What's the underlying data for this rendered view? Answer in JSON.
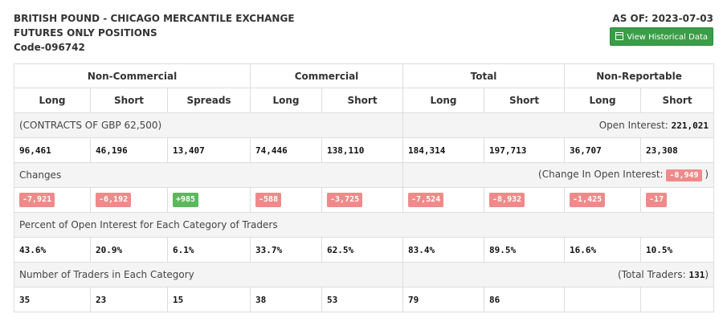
{
  "header": {
    "title_line1": "BRITISH POUND - CHICAGO MERCANTILE EXCHANGE",
    "title_line2": "FUTURES ONLY POSITIONS",
    "code": "Code-096742",
    "as_of": "AS OF: 2023-07-03",
    "history_button": "View Historical Data",
    "history_icon": "calendar-icon"
  },
  "table": {
    "groups": [
      "Non-Commercial",
      "Commercial",
      "Total",
      "Non-Reportable"
    ],
    "columns": [
      "Long",
      "Short",
      "Spreads",
      "Long",
      "Short",
      "Long",
      "Short",
      "Long",
      "Short"
    ],
    "contracts_label": "(CONTRACTS OF GBP 62,500)",
    "open_interest_label": "Open Interest: ",
    "open_interest_value": "221,021",
    "positions": [
      "96,461",
      "46,196",
      "13,407",
      "74,446",
      "138,110",
      "184,314",
      "197,713",
      "36,707",
      "23,308"
    ],
    "changes_label": "Changes",
    "change_oi_prefix": "(Change In Open Interest: ",
    "change_oi_value": "-8,949",
    "change_oi_suffix": " )",
    "changes": [
      "-7,921",
      "-6,192",
      "+985",
      "-588",
      "-3,725",
      "-7,524",
      "-8,932",
      "-1,425",
      "-17"
    ],
    "change_signs": [
      "neg",
      "neg",
      "pos",
      "neg",
      "neg",
      "neg",
      "neg",
      "neg",
      "neg"
    ],
    "percent_label": "Percent of Open Interest for Each Category of Traders",
    "percents": [
      "43.6%",
      "20.9%",
      "6.1%",
      "33.7%",
      "62.5%",
      "83.4%",
      "89.5%",
      "16.6%",
      "10.5%"
    ],
    "traders_label": "Number of Traders in Each Category",
    "total_traders_prefix": "(Total Traders: ",
    "total_traders_value": "131",
    "total_traders_suffix": ")",
    "traders": [
      "35",
      "23",
      "15",
      "38",
      "53",
      "79",
      "86",
      "",
      ""
    ]
  },
  "colors": {
    "negative_badge": "#f08a8a",
    "positive_badge": "#5cb85c",
    "button_green": "#3a9d48"
  }
}
